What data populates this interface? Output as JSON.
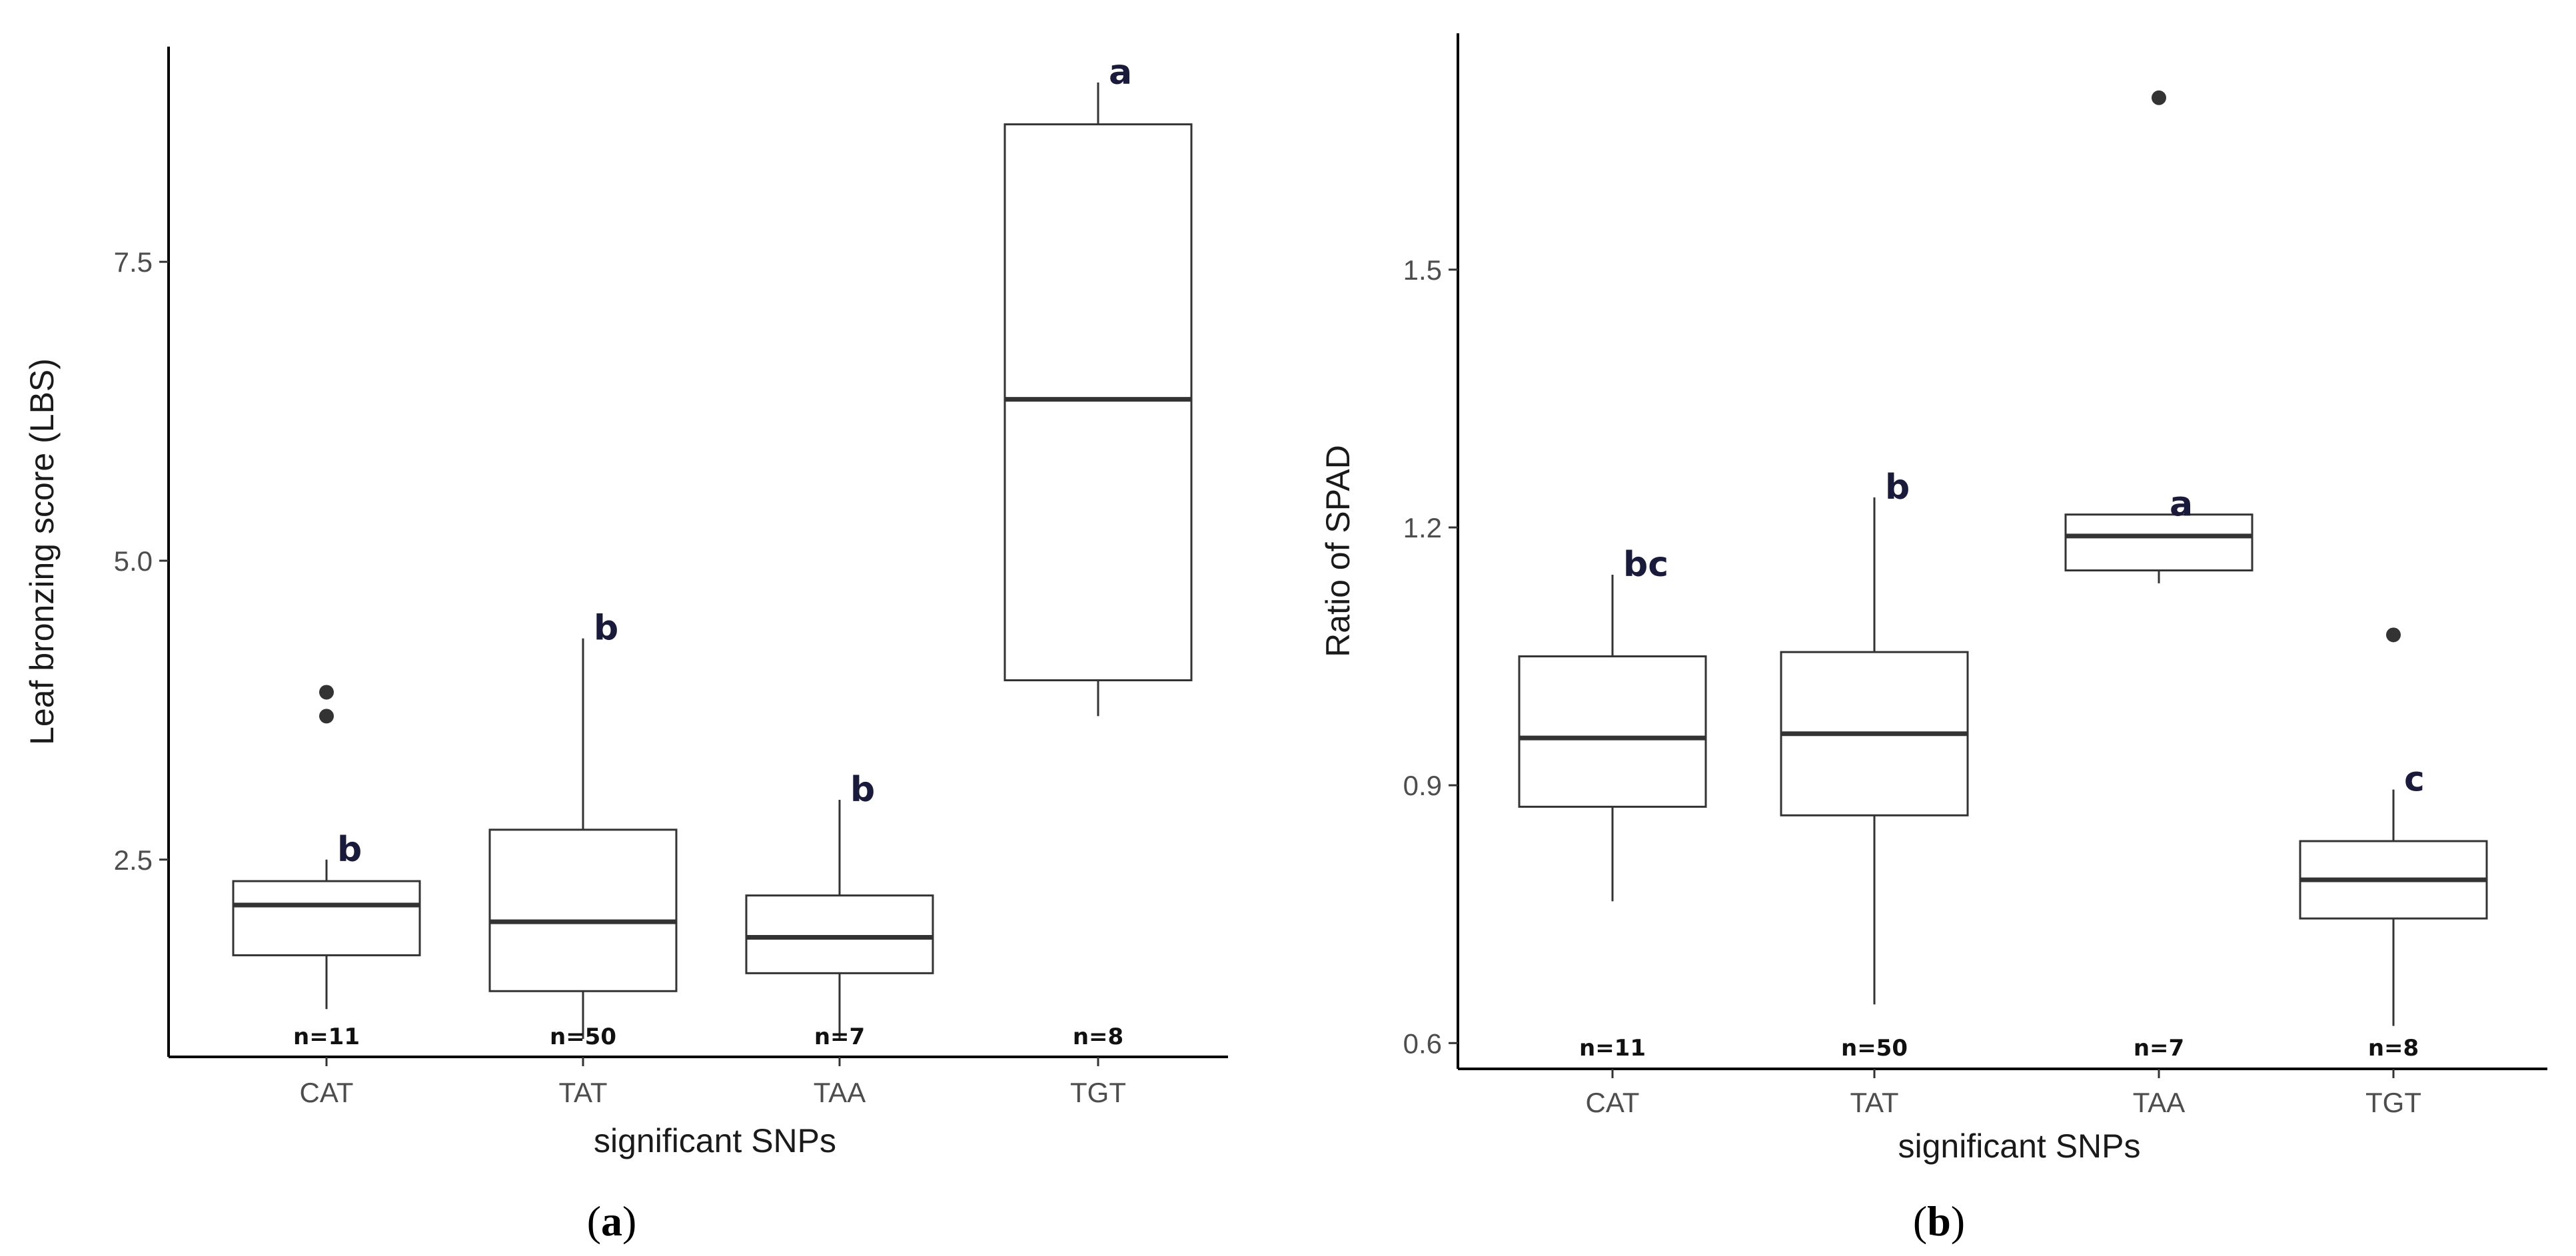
{
  "chart_data": [
    {
      "type": "box",
      "panel_label": "a",
      "xlabel": "significant SNPs",
      "ylabel": "Leaf bronzing score (LBS)",
      "categories": [
        "CAT",
        "TAT",
        "TAA",
        "TGT"
      ],
      "ylim": [
        0.85,
        9.3
      ],
      "yticks": [
        2.5,
        5.0,
        7.5
      ],
      "ytick_labels": [
        "2.5",
        "5.0",
        "7.5"
      ],
      "boxes": [
        {
          "category": "CAT",
          "min": 1.25,
          "q1": 1.7,
          "median": 2.12,
          "q3": 2.32,
          "max": 2.5,
          "outliers": [
            3.7,
            3.9
          ],
          "letter": "b",
          "n_label": "n=11"
        },
        {
          "category": "TAT",
          "min": 1.0,
          "q1": 1.4,
          "median": 1.98,
          "q3": 2.75,
          "max": 4.35,
          "outliers": [],
          "letter": "b",
          "n_label": "n=50"
        },
        {
          "category": "TAA",
          "min": 1.0,
          "q1": 1.55,
          "median": 1.85,
          "q3": 2.2,
          "max": 3.0,
          "outliers": [],
          "letter": "b",
          "n_label": "n=7"
        },
        {
          "category": "TGT",
          "min": 3.7,
          "q1": 4.0,
          "median": 6.35,
          "q3": 8.65,
          "max": 9.0,
          "outliers": [],
          "letter": "a",
          "n_label": "n=8"
        }
      ]
    },
    {
      "type": "box",
      "panel_label": "b",
      "xlabel": "significant SNPs",
      "ylabel": "Ratio of SPAD",
      "categories": [
        "CAT",
        "TAT",
        "TAA",
        "TGT"
      ],
      "ylim": [
        0.57,
        1.775
      ],
      "yticks": [
        0.6,
        0.9,
        1.2,
        1.5
      ],
      "ytick_labels": [
        "0.6",
        "0.9",
        "1.2",
        "1.5"
      ],
      "boxes": [
        {
          "category": "CAT",
          "min": 0.765,
          "q1": 0.875,
          "median": 0.955,
          "q3": 1.05,
          "max": 1.145,
          "outliers": [],
          "letter": "bc",
          "n_label": "n=11"
        },
        {
          "category": "TAT",
          "min": 0.645,
          "q1": 0.865,
          "median": 0.96,
          "q3": 1.055,
          "max": 1.235,
          "outliers": [],
          "letter": "b",
          "n_label": "n=50"
        },
        {
          "category": "TAA",
          "min": 1.135,
          "q1": 1.15,
          "median": 1.19,
          "q3": 1.215,
          "max": 1.215,
          "outliers": [
            1.7
          ],
          "letter": "a",
          "n_label": "n=7"
        },
        {
          "category": "TGT",
          "min": 0.62,
          "q1": 0.745,
          "median": 0.79,
          "q3": 0.835,
          "max": 0.895,
          "outliers": [
            1.075
          ],
          "letter": "c",
          "n_label": "n=8"
        }
      ]
    }
  ]
}
